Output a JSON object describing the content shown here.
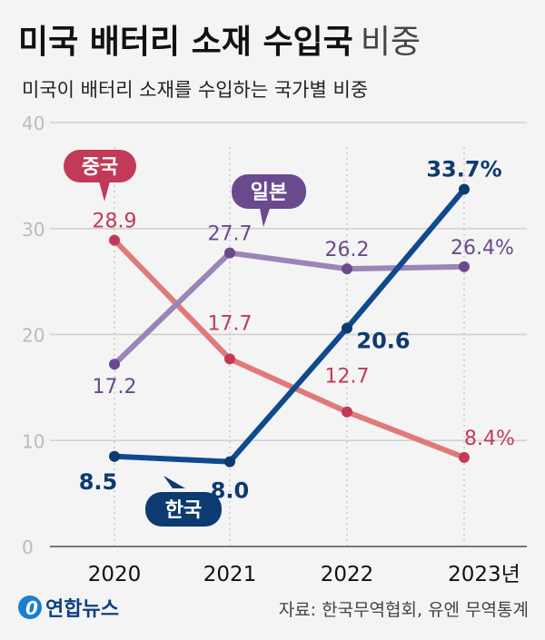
{
  "title_bold": "미국 배터리 소재 수입국",
  "title_light": "비중",
  "subtitle": "미국이 배터리 소재를 수입하는 국가별 비중",
  "footer": {
    "logo": "연합뉴스",
    "source": "자료: 한국무역협회, 유엔 무역통계"
  },
  "colors": {
    "china": "#e07a78",
    "china_label": "#c23a58",
    "japan": "#9a84b8",
    "japan_label": "#6a4a8c",
    "korea": "#0f4a8e",
    "korea_label": "#0d3a70"
  },
  "chart_data": {
    "type": "line",
    "categories": [
      "2020",
      "2021",
      "2022",
      "2023년"
    ],
    "ylim": [
      0,
      40
    ],
    "yticks": [
      "0",
      "10",
      "20",
      "30",
      "40"
    ],
    "grid": true,
    "series": [
      {
        "name": "중국",
        "values": [
          28.9,
          17.7,
          12.7,
          8.4
        ],
        "labels": [
          "28.9",
          "17.7",
          "12.7",
          "8.4%"
        ]
      },
      {
        "name": "일본",
        "values": [
          17.2,
          27.7,
          26.2,
          26.4
        ],
        "labels": [
          "17.2",
          "27.7",
          "26.2",
          "26.4%"
        ]
      },
      {
        "name": "한국",
        "values": [
          8.5,
          8.0,
          20.6,
          33.7
        ],
        "labels": [
          "8.5",
          "8.0",
          "20.6",
          "33.7%"
        ]
      }
    ]
  }
}
